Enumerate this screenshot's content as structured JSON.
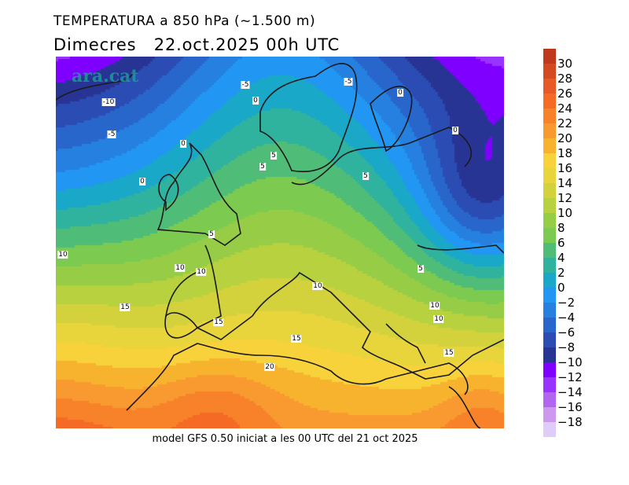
{
  "title": "TEMPERATURA a 850 hPa (~1.500 m)",
  "subtitle": "Dimecres   22.oct.2025 00h UTC",
  "logo": "ara.cat",
  "footer": "model GFS 0.50 iniciat a les 00 UTC del 21 oct 2025",
  "colorbar": {
    "labels": [
      "30",
      "28",
      "26",
      "24",
      "22",
      "20",
      "18",
      "16",
      "14",
      "12",
      "10",
      "8",
      "6",
      "4",
      "2",
      "0",
      "−2",
      "−4",
      "−6",
      "−8",
      "−10",
      "−12",
      "−14",
      "−16",
      "−18"
    ],
    "colors": [
      "#c0391f",
      "#d44a20",
      "#e85a25",
      "#f56a25",
      "#f7822a",
      "#f89a30",
      "#f8b32e",
      "#f7d23a",
      "#e8d53c",
      "#d3d23d",
      "#b8d13e",
      "#97cc47",
      "#7ccb50",
      "#4fbd78",
      "#2fb39e",
      "#1aa8c8",
      "#2196f3",
      "#2580e0",
      "#2866cc",
      "#2a4cb3",
      "#283494",
      "#8000ff",
      "#9933ff",
      "#b066f0",
      "#cc99ee",
      "#e0ccf8"
    ]
  },
  "contour_labels": [
    "-5",
    "-5",
    "-10",
    "0",
    "0",
    "-5",
    "0",
    "0",
    "5",
    "5",
    "0",
    "5",
    "5",
    "10",
    "10",
    "10",
    "5",
    "10",
    "15",
    "10",
    "10",
    "15",
    "15",
    "15",
    "20"
  ]
}
